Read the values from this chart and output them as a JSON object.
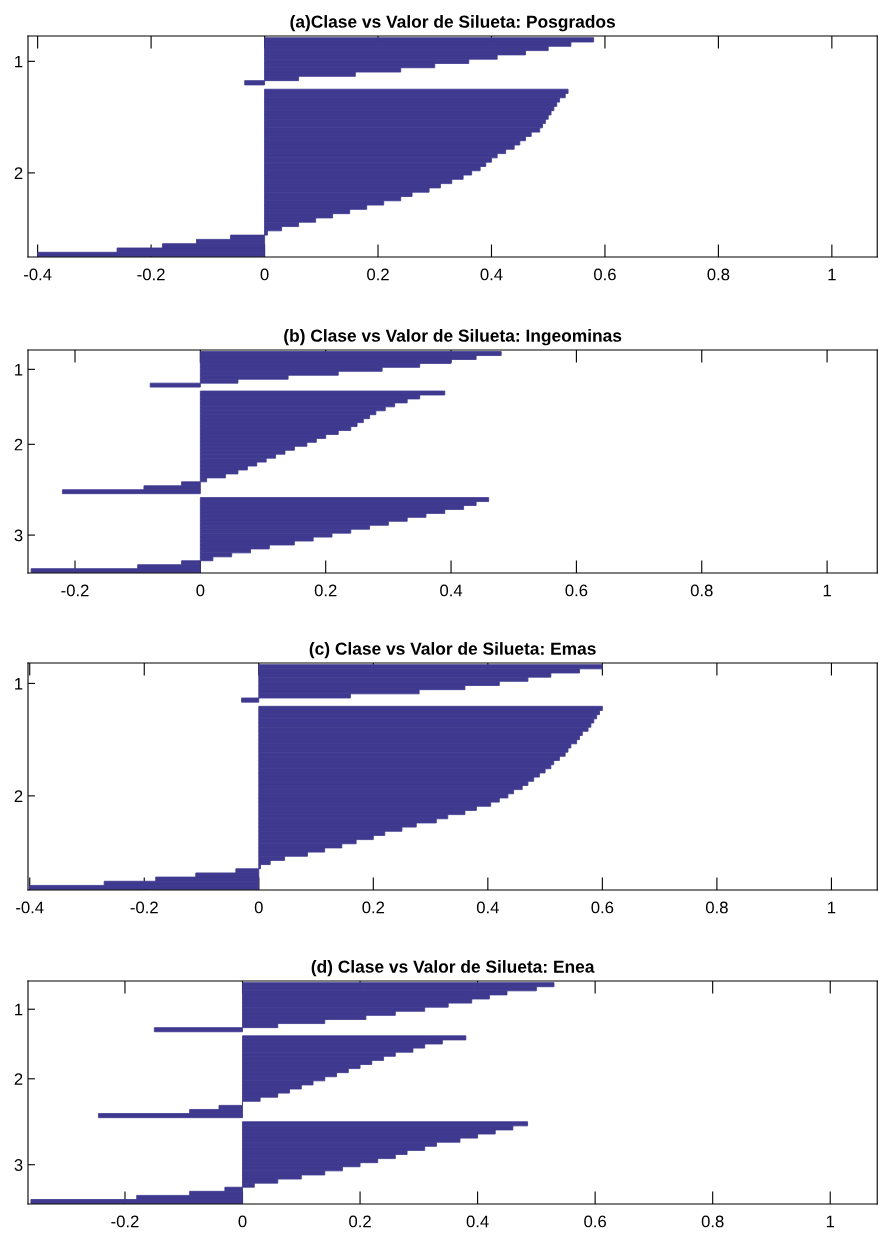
{
  "chart_data": [
    {
      "type": "bar",
      "orientation": "horizontal",
      "title": "(a)Clase vs Valor de Silueta: Posgrados",
      "color": "#3f3a8f",
      "categories": [
        null,
        null,
        null,
        null,
        null,
        "1",
        null,
        null,
        null,
        null,
        null,
        null,
        null,
        null,
        null,
        null,
        null,
        null,
        null,
        null,
        null,
        null,
        null,
        null,
        null,
        null,
        null,
        null,
        null,
        null,
        null,
        "2",
        null,
        null,
        null,
        null,
        null,
        null,
        null,
        null,
        null,
        null,
        null,
        null,
        null,
        null,
        null,
        null,
        null,
        null,
        null
      ],
      "values": [
        0.58,
        0.54,
        0.5,
        0.46,
        0.41,
        0.36,
        0.3,
        0.24,
        0.16,
        0.06,
        -0.035,
        null,
        0.535,
        0.53,
        0.52,
        0.515,
        0.51,
        0.505,
        0.5,
        0.495,
        0.49,
        0.485,
        0.47,
        0.46,
        0.45,
        0.44,
        0.425,
        0.41,
        0.4,
        0.39,
        0.38,
        0.365,
        0.35,
        0.33,
        0.31,
        0.29,
        0.26,
        0.24,
        0.21,
        0.18,
        0.15,
        0.12,
        0.09,
        0.06,
        0.03,
        0.005,
        -0.06,
        -0.12,
        -0.18,
        -0.26,
        -0.4
      ],
      "xlim": [
        -0.417,
        1.08
      ],
      "xticks": [
        -0.4,
        -0.2,
        0,
        0.2,
        0.4,
        0.6,
        0.8,
        1
      ]
    },
    {
      "type": "bar",
      "orientation": "horizontal",
      "title": "(b) Clase vs Valor de Silueta: Ingeominas",
      "color": "#3f3a8f",
      "categories": [
        null,
        null,
        null,
        null,
        "1",
        null,
        null,
        null,
        null,
        null,
        null,
        null,
        null,
        null,
        null,
        null,
        null,
        null,
        null,
        null,
        null,
        null,
        null,
        "2",
        null,
        null,
        null,
        null,
        null,
        null,
        null,
        null,
        null,
        null,
        null,
        null,
        null,
        null,
        null,
        null,
        null,
        null,
        null,
        null,
        null,
        null,
        "3",
        null,
        null,
        null,
        null,
        null,
        null,
        null,
        null,
        null
      ],
      "values": [
        0.48,
        0.44,
        0.4,
        0.35,
        0.29,
        0.22,
        0.14,
        0.06,
        -0.08,
        null,
        0.39,
        0.35,
        0.33,
        0.31,
        0.295,
        0.28,
        0.27,
        0.26,
        0.25,
        0.24,
        0.22,
        0.2,
        0.185,
        0.17,
        0.15,
        0.135,
        0.12,
        0.105,
        0.09,
        0.075,
        0.06,
        0.04,
        0.01,
        -0.03,
        -0.09,
        -0.22,
        null,
        0.46,
        0.44,
        0.42,
        0.39,
        0.36,
        0.33,
        0.3,
        0.27,
        0.24,
        0.21,
        0.18,
        0.15,
        0.11,
        0.08,
        0.05,
        0.02,
        -0.03,
        -0.1,
        -0.27
      ],
      "xlim": [
        -0.275,
        1.08
      ],
      "xticks": [
        -0.2,
        0,
        0.2,
        0.4,
        0.6,
        0.8,
        1
      ]
    },
    {
      "type": "bar",
      "orientation": "horizontal",
      "title": "(c) Clase vs Valor de Silueta: Emas",
      "color": "#3f3a8f",
      "categories": [
        null,
        null,
        null,
        null,
        "1",
        null,
        null,
        null,
        null,
        null,
        null,
        null,
        null,
        null,
        null,
        null,
        null,
        null,
        null,
        null,
        null,
        null,
        null,
        null,
        null,
        null,
        null,
        null,
        null,
        null,
        null,
        "2",
        null,
        null,
        null,
        null,
        null,
        null,
        null,
        null,
        null,
        null,
        null,
        null,
        null,
        null,
        null,
        null,
        null,
        null,
        null,
        null,
        null,
        null
      ],
      "values": [
        0.6,
        0.56,
        0.51,
        0.47,
        0.42,
        0.36,
        0.28,
        0.16,
        -0.03,
        null,
        0.6,
        0.595,
        0.59,
        0.585,
        0.58,
        0.575,
        0.565,
        0.56,
        0.555,
        0.545,
        0.54,
        0.535,
        0.525,
        0.515,
        0.51,
        0.5,
        0.49,
        0.48,
        0.47,
        0.46,
        0.445,
        0.435,
        0.42,
        0.405,
        0.38,
        0.36,
        0.33,
        0.31,
        0.275,
        0.25,
        0.22,
        0.2,
        0.17,
        0.145,
        0.115,
        0.085,
        0.045,
        0.02,
        0.003,
        -0.04,
        -0.11,
        -0.18,
        -0.27,
        -0.4
      ],
      "xlim": [
        -0.403,
        1.08
      ],
      "xticks": [
        -0.4,
        -0.2,
        0,
        0.2,
        0.4,
        0.6,
        0.8,
        1
      ]
    },
    {
      "type": "bar",
      "orientation": "horizontal",
      "title": "(d) Clase vs Valor de Silueta: Enea",
      "color": "#3f3a8f",
      "categories": [
        null,
        null,
        null,
        null,
        null,
        null,
        "1",
        null,
        null,
        null,
        null,
        null,
        null,
        null,
        null,
        null,
        null,
        null,
        null,
        null,
        null,
        null,
        null,
        "2",
        null,
        null,
        null,
        null,
        null,
        null,
        null,
        null,
        null,
        null,
        null,
        null,
        null,
        null,
        null,
        null,
        null,
        null,
        null,
        null,
        "3",
        null,
        null,
        null,
        null,
        null,
        null,
        null,
        null,
        null
      ],
      "values": [
        0.53,
        0.5,
        0.45,
        0.42,
        0.39,
        0.35,
        0.31,
        0.26,
        0.21,
        0.14,
        0.06,
        -0.15,
        null,
        0.38,
        0.34,
        0.31,
        0.29,
        0.26,
        0.24,
        0.22,
        0.2,
        0.18,
        0.16,
        0.14,
        0.12,
        0.1,
        0.08,
        0.06,
        0.03,
        0.0,
        -0.04,
        -0.09,
        -0.245,
        null,
        0.485,
        0.46,
        0.43,
        0.4,
        0.37,
        0.33,
        0.31,
        0.28,
        0.26,
        0.23,
        0.2,
        0.17,
        0.14,
        0.1,
        0.06,
        0.02,
        -0.03,
        -0.09,
        -0.18,
        -0.36
      ],
      "xlim": [
        -0.365,
        1.08
      ],
      "xticks": [
        -0.2,
        0,
        0.2,
        0.4,
        0.6,
        0.8,
        1
      ]
    }
  ]
}
